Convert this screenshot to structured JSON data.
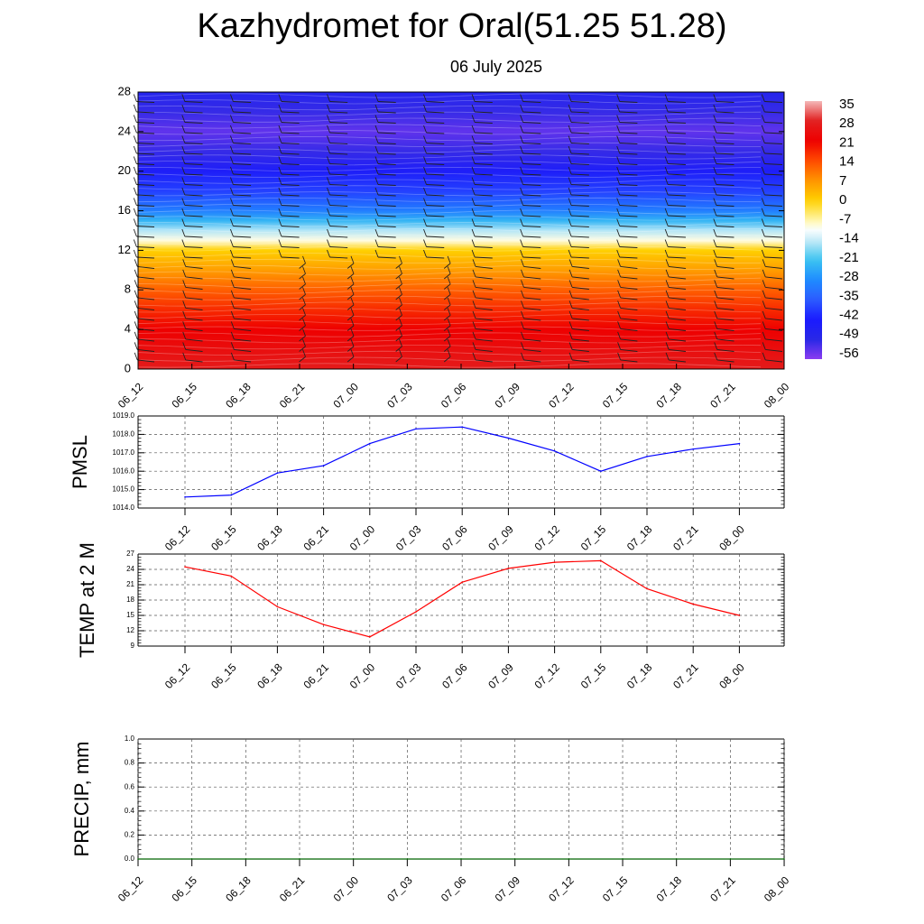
{
  "title": "Kazhydromet for Oral(51.25 51.28)",
  "subtitle": "06 July 2025",
  "colors": {
    "pmsl_line": "#0000ff",
    "temp_line": "#ff0000",
    "precip_line": "#006400",
    "warm_low": "#ee0000",
    "cold_high": "#1a1aff"
  },
  "chart_data": [
    {
      "type": "heatmap",
      "title": "",
      "xlabel": "",
      "ylabel": "",
      "x_tick_labels": [
        "06_12",
        "06_15",
        "06_18",
        "06_21",
        "07_00",
        "07_03",
        "07_06",
        "07_09",
        "07_12",
        "07_15",
        "07_18",
        "07_21",
        "08_00"
      ],
      "y_ticks": [
        0,
        4,
        8,
        12,
        16,
        20,
        24,
        28
      ],
      "ylim": [
        0,
        28
      ],
      "colorbar_labels": [
        "35",
        "28",
        "21",
        "14",
        "7",
        "0",
        "-7",
        "-14",
        "-21",
        "-28",
        "-35",
        "-42",
        "-49",
        "-56"
      ],
      "colorbar_values": [
        35,
        28,
        21,
        14,
        7,
        0,
        -7,
        -14,
        -21,
        -28,
        -35,
        -42,
        -49,
        -56
      ],
      "color_stops": [
        {
          "value": 35,
          "color": "#f4b8b8"
        },
        {
          "value": 28,
          "color": "#e22020"
        },
        {
          "value": 21,
          "color": "#ee0000"
        },
        {
          "value": 14,
          "color": "#ff4a00"
        },
        {
          "value": 7,
          "color": "#ff9400"
        },
        {
          "value": 0,
          "color": "#ffd000"
        },
        {
          "value": -7,
          "color": "#fff6a8"
        },
        {
          "value": -10,
          "color": "#ffffff"
        },
        {
          "value": -14,
          "color": "#c8ecf8"
        },
        {
          "value": -21,
          "color": "#3cc4f0"
        },
        {
          "value": -28,
          "color": "#1e8cff"
        },
        {
          "value": -35,
          "color": "#2c5cff"
        },
        {
          "value": -42,
          "color": "#1a1aff"
        },
        {
          "value": -49,
          "color": "#2828e6"
        },
        {
          "value": -56,
          "color": "#8a3cf0"
        }
      ],
      "temperature_profile": [
        {
          "level": 0,
          "value": 27
        },
        {
          "level": 2,
          "value": 24
        },
        {
          "level": 4,
          "value": 21
        },
        {
          "level": 6,
          "value": 17
        },
        {
          "level": 8,
          "value": 12
        },
        {
          "level": 10,
          "value": 6
        },
        {
          "level": 12,
          "value": 0
        },
        {
          "level": 13,
          "value": -9
        },
        {
          "level": 14,
          "value": -15
        },
        {
          "level": 15,
          "value": -23
        },
        {
          "level": 16,
          "value": -30
        },
        {
          "level": 18,
          "value": -38
        },
        {
          "level": 20,
          "value": -44
        },
        {
          "level": 22,
          "value": -50
        },
        {
          "level": 24,
          "value": -53
        },
        {
          "level": 26,
          "value": -50
        },
        {
          "level": 28,
          "value": -47
        }
      ]
    },
    {
      "type": "line",
      "ylabel": "PMSL",
      "xlabel": "",
      "categories": [
        "06_12",
        "06_15",
        "06_18",
        "06_21",
        "07_00",
        "07_03",
        "07_06",
        "07_09",
        "07_12",
        "07_15",
        "07_18",
        "07_21",
        "08_00"
      ],
      "series": [
        {
          "values": [
            1014.6,
            1014.7,
            1015.9,
            1016.3,
            1017.5,
            1018.3,
            1018.4,
            1017.8,
            1017.1,
            1016.0,
            1016.8,
            1017.2,
            1017.5
          ]
        }
      ],
      "ylim": [
        1014.0,
        1019.0
      ],
      "y_ticks": [
        1014.0,
        1015.0,
        1016.0,
        1017.0,
        1018.0,
        1019.0
      ],
      "y_tick_labels": [
        "1014.0",
        "1015.0",
        "1016.0",
        "1017.0",
        "1018.0",
        "1019.0"
      ],
      "grid": true
    },
    {
      "type": "line",
      "ylabel": "TEMP at 2 M",
      "xlabel": "",
      "categories": [
        "06_12",
        "06_15",
        "06_18",
        "06_21",
        "07_00",
        "07_03",
        "07_06",
        "07_09",
        "07_12",
        "07_15",
        "07_18",
        "07_21",
        "08_00"
      ],
      "series": [
        {
          "values": [
            24.5,
            22.7,
            16.7,
            13.2,
            10.8,
            15.7,
            21.5,
            24.2,
            25.4,
            25.7,
            20.2,
            17.2,
            15.0
          ]
        }
      ],
      "ylim": [
        9,
        27
      ],
      "y_ticks": [
        9,
        12,
        15,
        18,
        21,
        24,
        27
      ],
      "y_tick_labels": [
        "9",
        "12",
        "15",
        "18",
        "21",
        "24",
        "27"
      ],
      "grid": true
    },
    {
      "type": "line",
      "ylabel": "PRECIP, mm",
      "xlabel": "",
      "categories": [
        "06_12",
        "06_15",
        "06_18",
        "06_21",
        "07_00",
        "07_03",
        "07_06",
        "07_09",
        "07_12",
        "07_15",
        "07_18",
        "07_21",
        "08_00"
      ],
      "series": [
        {
          "values": [
            0,
            0,
            0,
            0,
            0,
            0,
            0,
            0,
            0,
            0,
            0,
            0,
            0
          ]
        }
      ],
      "ylim": [
        0,
        1
      ],
      "y_ticks": [
        0,
        0.2,
        0.4,
        0.6,
        0.8,
        1.0
      ],
      "y_tick_labels": [
        "0.0",
        "0.2",
        "0.4",
        "0.6",
        "0.8",
        "1.0"
      ],
      "grid": true
    }
  ]
}
